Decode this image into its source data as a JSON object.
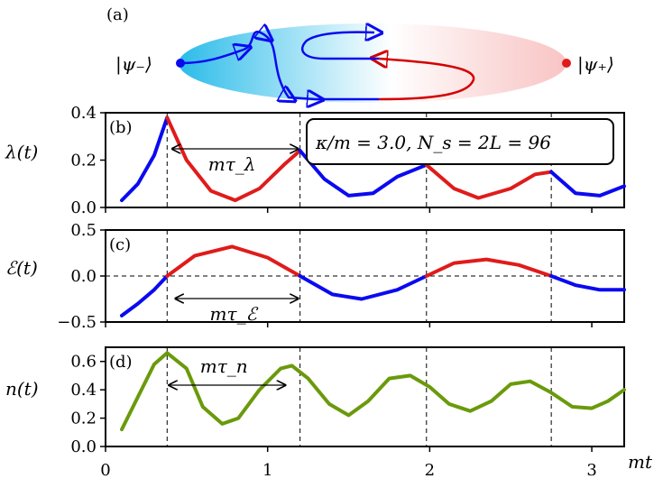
{
  "chart_data": [
    {
      "type": "diagram",
      "panel": "(a)",
      "left_state": "|ψ₋⟩",
      "right_state": "|ψ₊⟩",
      "colors": {
        "left": "#1fb8e8",
        "right": "#f5a7a7",
        "path_blue": "#0a0af0",
        "path_red": "#d40000"
      }
    },
    {
      "type": "line",
      "panel": "(b)",
      "ylabel": "λ(t)",
      "ylim": [
        0.0,
        0.4
      ],
      "yticks": [
        "0.0",
        "0.2",
        "0.4"
      ],
      "xlim": [
        0,
        3.2
      ],
      "annotation": "κ/m = 3.0, N_s = 2L = 96",
      "interval_label": "mτ_λ",
      "interval": [
        0.4,
        1.2
      ],
      "dashed_x": [
        0.38,
        1.2,
        1.98,
        2.75
      ],
      "series": [
        {
          "color": "blue",
          "x": [
            0.1,
            0.2,
            0.3,
            0.38
          ],
          "values": [
            0.03,
            0.1,
            0.22,
            0.38
          ]
        },
        {
          "color": "red",
          "x": [
            0.38,
            0.5,
            0.65,
            0.8,
            0.95,
            1.1,
            1.2
          ],
          "values": [
            0.38,
            0.2,
            0.07,
            0.03,
            0.08,
            0.18,
            0.24
          ]
        },
        {
          "color": "blue",
          "x": [
            1.2,
            1.35,
            1.5,
            1.65,
            1.8,
            1.98
          ],
          "values": [
            0.24,
            0.12,
            0.05,
            0.06,
            0.13,
            0.18
          ]
        },
        {
          "color": "red",
          "x": [
            1.98,
            2.15,
            2.3,
            2.5,
            2.65,
            2.75
          ],
          "values": [
            0.18,
            0.08,
            0.04,
            0.08,
            0.14,
            0.15
          ]
        },
        {
          "color": "blue",
          "x": [
            2.75,
            2.9,
            3.05,
            3.2
          ],
          "values": [
            0.15,
            0.06,
            0.05,
            0.09
          ]
        }
      ]
    },
    {
      "type": "line",
      "panel": "(c)",
      "ylabel": "ℰ(t)",
      "ylim": [
        -0.5,
        0.5
      ],
      "yticks": [
        "0.5",
        "0.0",
        "−0.5"
      ],
      "xlim": [
        0,
        3.2
      ],
      "interval_label": "mτ_ℰ",
      "interval": [
        0.42,
        1.2
      ],
      "dashed_x": [
        0.38,
        1.2,
        1.98,
        2.75
      ],
      "series": [
        {
          "color": "blue",
          "x": [
            0.1,
            0.2,
            0.3,
            0.38
          ],
          "values": [
            -0.43,
            -0.3,
            -0.15,
            0.0
          ]
        },
        {
          "color": "red",
          "x": [
            0.38,
            0.55,
            0.78,
            1.0,
            1.2
          ],
          "values": [
            0.0,
            0.22,
            0.32,
            0.2,
            0.0
          ]
        },
        {
          "color": "blue",
          "x": [
            1.2,
            1.4,
            1.58,
            1.8,
            1.98
          ],
          "values": [
            0.0,
            -0.2,
            -0.25,
            -0.15,
            0.0
          ]
        },
        {
          "color": "red",
          "x": [
            1.98,
            2.15,
            2.35,
            2.55,
            2.75
          ],
          "values": [
            0.0,
            0.14,
            0.18,
            0.12,
            0.0
          ]
        },
        {
          "color": "blue",
          "x": [
            2.75,
            2.9,
            3.05,
            3.2
          ],
          "values": [
            0.0,
            -0.1,
            -0.15,
            -0.15
          ]
        }
      ]
    },
    {
      "type": "line",
      "panel": "(d)",
      "ylabel": "n(t)",
      "ylim": [
        0.0,
        0.7
      ],
      "yticks": [
        "0.6",
        "0.4",
        "0.2",
        "0.0"
      ],
      "xlim": [
        0,
        3.2
      ],
      "xticks": [
        "0",
        "1",
        "2",
        "3"
      ],
      "xlabel": "mt",
      "interval_label": "mτ_n",
      "interval": [
        0.38,
        1.12
      ],
      "dashed_x": [
        0.38,
        1.2,
        1.98,
        2.75
      ],
      "series": [
        {
          "color": "olive",
          "x": [
            0.1,
            0.2,
            0.3,
            0.38,
            0.5,
            0.6,
            0.72,
            0.82,
            0.95,
            1.08,
            1.15,
            1.25,
            1.38,
            1.5,
            1.62,
            1.75,
            1.88,
            2.0,
            2.12,
            2.25,
            2.38,
            2.5,
            2.62,
            2.75,
            2.88,
            3.0,
            3.1,
            3.2
          ],
          "values": [
            0.12,
            0.35,
            0.58,
            0.66,
            0.55,
            0.28,
            0.16,
            0.2,
            0.4,
            0.55,
            0.57,
            0.48,
            0.3,
            0.22,
            0.32,
            0.48,
            0.5,
            0.42,
            0.3,
            0.25,
            0.32,
            0.44,
            0.46,
            0.38,
            0.28,
            0.27,
            0.32,
            0.4
          ]
        }
      ]
    }
  ]
}
